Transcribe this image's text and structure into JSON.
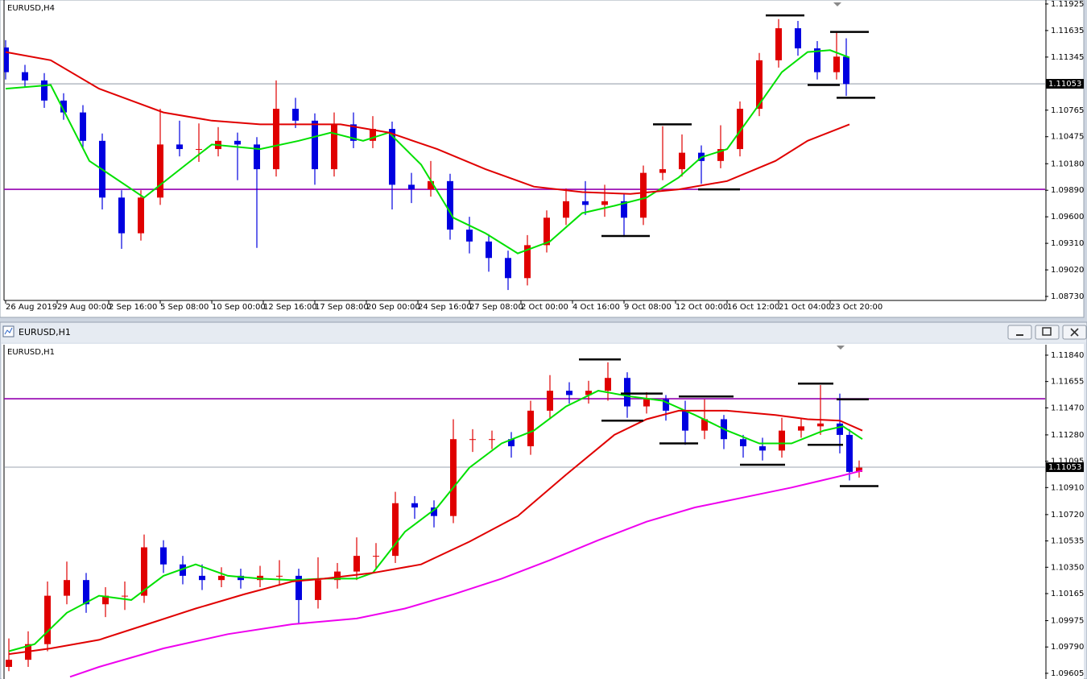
{
  "window": {
    "title": "EURUSD,H1"
  },
  "chart_data": [
    {
      "type": "candlestick",
      "title": "EURUSD,H4",
      "up_color": "#e00000",
      "down_color": "#0000e0",
      "xlim": [
        -0.5,
        322.75
      ],
      "ylim": [
        1.08695,
        1.11951
      ],
      "yticks": [
        1.11925,
        1.11635,
        1.11345,
        1.10765,
        1.10475,
        {
          "value": 1.1018,
          "label": "1.10180"
        },
        {
          "value": 1.0989,
          "label": "1.09890"
        },
        {
          "value": 1.096,
          "label": "1.09600"
        },
        {
          "value": 1.0931,
          "label": "1.09310"
        },
        {
          "value": 1.0902,
          "label": "1.09020"
        },
        {
          "value": 1.0873,
          "label": "1.08730"
        }
      ],
      "xticks": [
        {
          "value": 0,
          "label": "26 Aug 2019"
        },
        {
          "value": 16,
          "label": "29 Aug 00:00"
        },
        {
          "value": 32,
          "label": "2 Sep 16:00"
        },
        {
          "value": 48,
          "label": "5 Sep 08:00"
        },
        {
          "value": 64,
          "label": "10 Sep 00:00"
        },
        {
          "value": 80,
          "label": "12 Sep 16:00"
        },
        {
          "value": 96,
          "label": "17 Sep 08:00"
        },
        {
          "value": 112,
          "label": "20 Sep 00:00"
        },
        {
          "value": 128,
          "label": "24 Sep 16:00"
        },
        {
          "value": 144,
          "label": "27 Sep 08:00"
        },
        {
          "value": 160,
          "label": "2 Oct 00:00"
        },
        {
          "value": 176,
          "label": "4 Oct 16:00"
        },
        {
          "value": 192,
          "label": "9 Oct 08:00"
        },
        {
          "value": 208,
          "label": "12 Oct 00:00"
        },
        {
          "value": 224,
          "label": "16 Oct 12:00"
        },
        {
          "value": 240,
          "label": "21 Oct 04:00"
        },
        {
          "value": 256,
          "label": "23 Oct 20:00"
        }
      ],
      "x": [
        0,
        6,
        12,
        18,
        24,
        30,
        36,
        42,
        48,
        54,
        60,
        66,
        72,
        78,
        84,
        90,
        96,
        102,
        108,
        114,
        120,
        126,
        132,
        138,
        144,
        150,
        156,
        162,
        168,
        174,
        180,
        186,
        192,
        198,
        204,
        210,
        216,
        222,
        228,
        234,
        240,
        246,
        252,
        258,
        261
      ],
      "open": [
        1.1145,
        1.1118,
        1.1109,
        1.1087,
        1.1074,
        1.1043,
        1.0981,
        1.0942,
        1.0981,
        1.1039,
        1.1034,
        1.1034,
        1.1043,
        1.1039,
        1.1012,
        1.1078,
        1.1065,
        1.1012,
        1.1061,
        1.1043,
        1.1056,
        1.0995,
        1.099,
        1.0999,
        1.0946,
        1.0933,
        1.0915,
        1.0893,
        1.0929,
        1.0959,
        1.0977,
        1.0973,
        1.0977,
        1.0959,
        1.1008,
        1.1012,
        1.103,
        1.1021,
        1.1034,
        1.1078,
        1.1131,
        1.1166,
        1.1144,
        1.1118,
        1.1135
      ],
      "high": [
        1.1153,
        1.1126,
        1.1117,
        1.1095,
        1.1082,
        1.1051,
        1.0989,
        1.0989,
        1.1078,
        1.1065,
        1.1062,
        1.1058,
        1.1052,
        1.1047,
        1.1109,
        1.109,
        1.1073,
        1.1074,
        1.1074,
        1.107,
        1.1064,
        1.1008,
        1.1021,
        1.1007,
        1.096,
        1.0941,
        1.0923,
        1.094,
        1.0967,
        1.0991,
        1.0999,
        1.0995,
        1.0985,
        1.1016,
        1.1059,
        1.105,
        1.1038,
        1.106,
        1.1086,
        1.1139,
        1.1176,
        1.1174,
        1.1152,
        1.1163,
        1.1155
      ],
      "low": [
        1.111,
        1.1101,
        1.1079,
        1.1066,
        1.1035,
        1.0968,
        1.0925,
        1.0934,
        1.0973,
        1.1026,
        1.102,
        1.1026,
        1.1,
        1.0926,
        1.1004,
        1.1057,
        1.0995,
        1.1004,
        1.1035,
        1.1035,
        1.0968,
        1.0975,
        1.0982,
        1.0935,
        1.092,
        1.09,
        1.088,
        1.0885,
        1.0921,
        1.0951,
        1.0962,
        1.096,
        1.0938,
        1.0951,
        1.1,
        1.1004,
        1.0996,
        1.1013,
        1.1026,
        1.107,
        1.1123,
        1.1136,
        1.111,
        1.111,
        1.1092
      ],
      "close": [
        1.1118,
        1.1109,
        1.1087,
        1.1074,
        1.1043,
        1.0981,
        1.0942,
        1.0981,
        1.1039,
        1.1034,
        1.1034,
        1.1043,
        1.1039,
        1.1012,
        1.1078,
        1.1065,
        1.1012,
        1.1061,
        1.1043,
        1.1056,
        1.0995,
        1.099,
        1.0999,
        1.0946,
        1.0933,
        1.0915,
        1.0893,
        1.0929,
        1.0959,
        1.0977,
        1.0973,
        1.0977,
        1.0959,
        1.1008,
        1.1012,
        1.103,
        1.1021,
        1.1034,
        1.1078,
        1.1131,
        1.1166,
        1.1144,
        1.1118,
        1.1135,
        1.1105
      ],
      "moving_averages": [
        {
          "color": "#00e000",
          "x": [
            0,
            14,
            26,
            43,
            56,
            64,
            79,
            91,
            101,
            111,
            119,
            129,
            139,
            149,
            159,
            169,
            179,
            189,
            199,
            209,
            216,
            224,
            234,
            241,
            249,
            256,
            262
          ],
          "values": [
            1.11,
            1.1104,
            1.1021,
            1.0981,
            1.1017,
            1.1039,
            1.1034,
            1.1043,
            1.1052,
            1.1043,
            1.1052,
            1.1017,
            1.0959,
            1.0942,
            1.092,
            1.0933,
            1.0964,
            1.0972,
            1.0981,
            1.1003,
            1.1025,
            1.1034,
            1.1083,
            1.1118,
            1.114,
            1.1142,
            1.1134
          ]
        },
        {
          "color": "#e00000",
          "x": [
            0,
            14,
            29,
            49,
            64,
            79,
            91,
            104,
            119,
            134,
            149,
            164,
            179,
            194,
            209,
            224,
            239,
            249,
            262
          ],
          "values": [
            1.114,
            1.1131,
            1.11,
            1.1074,
            1.1065,
            1.1061,
            1.1061,
            1.1061,
            1.1052,
            1.1034,
            1.1012,
            1.0993,
            1.0987,
            1.0985,
            1.099,
            1.0999,
            1.1021,
            1.1043,
            1.1061
          ]
        }
      ],
      "hlines": [
        {
          "value": 1.099,
          "color": "#9400b0"
        }
      ],
      "current_price": 1.11053,
      "level_marks": [
        {
          "x": [
            236,
            248
          ],
          "value": 1.118
        },
        {
          "x": [
            256,
            268
          ],
          "value": 1.1162
        },
        {
          "x": [
            249,
            259
          ],
          "value": 1.1104
        },
        {
          "x": [
            258,
            270
          ],
          "value": 1.109
        },
        {
          "x": [
            201,
            213
          ],
          "value": 1.1061
        },
        {
          "x": [
            215,
            228
          ],
          "value": 1.099
        },
        {
          "x": [
            185,
            200
          ],
          "value": 1.0939
        }
      ]
    },
    {
      "type": "candlestick",
      "title": "EURUSD,H1",
      "up_color": "#e00000",
      "down_color": "#0000e0",
      "xlim": [
        -0.5,
        322.75
      ],
      "ylim": [
        1.09565,
        1.11902
      ],
      "yticks": [
        {
          "value": 1.1184,
          "label": "1.11840"
        },
        1.11655,
        {
          "value": 1.1147,
          "label": "1.11470"
        },
        {
          "value": 1.1128,
          "label": "1.11280"
        },
        1.11095,
        {
          "value": 1.1091,
          "label": "1.10910"
        },
        {
          "value": 1.1072,
          "label": "1.10720"
        },
        1.10535,
        {
          "value": 1.1035,
          "label": "1.10350"
        },
        1.10165,
        1.09975,
        {
          "value": 1.0979,
          "label": "1.09790"
        },
        1.09605
      ],
      "x": [
        1,
        7,
        13,
        19,
        25,
        31,
        37,
        43,
        49,
        55,
        61,
        67,
        73,
        79,
        85,
        91,
        97,
        103,
        109,
        115,
        121,
        127,
        133,
        139,
        145,
        151,
        157,
        163,
        169,
        175,
        181,
        187,
        193,
        199,
        205,
        211,
        217,
        223,
        229,
        235,
        241,
        247,
        253,
        259,
        262,
        265
      ],
      "open": [
        1.0965,
        1.097,
        1.0981,
        1.1015,
        1.1026,
        1.1009,
        1.1015,
        1.1015,
        1.1049,
        1.1037,
        1.1029,
        1.1026,
        1.1029,
        1.1026,
        1.1029,
        1.1029,
        1.1012,
        1.1026,
        1.1032,
        1.1043,
        1.1043,
        1.108,
        1.1077,
        1.1071,
        1.1125,
        1.1125,
        1.1125,
        1.112,
        1.1145,
        1.1159,
        1.1156,
        1.1159,
        1.1168,
        1.1148,
        1.1153,
        1.1145,
        1.1131,
        1.1139,
        1.1125,
        1.112,
        1.1117,
        1.1131,
        1.1134,
        1.1136,
        1.1128,
        1.1102
      ],
      "high": [
        1.0985,
        1.099,
        1.1025,
        1.1039,
        1.1031,
        1.1021,
        1.1025,
        1.1058,
        1.1054,
        1.1043,
        1.1037,
        1.1035,
        1.1034,
        1.1036,
        1.104,
        1.1034,
        1.1042,
        1.1038,
        1.1056,
        1.1052,
        1.1088,
        1.1085,
        1.1082,
        1.1139,
        1.1132,
        1.1131,
        1.113,
        1.1152,
        1.117,
        1.1165,
        1.1166,
        1.1179,
        1.1172,
        1.1158,
        1.1156,
        1.1152,
        1.1153,
        1.1142,
        1.1128,
        1.1126,
        1.114,
        1.114,
        1.1163,
        1.1157,
        1.1132,
        1.111
      ],
      "low": [
        1.0962,
        1.0965,
        1.0976,
        1.1009,
        1.1003,
        1.1,
        1.1005,
        1.101,
        1.1031,
        1.1023,
        1.1019,
        1.1021,
        1.102,
        1.1021,
        1.1022,
        1.0995,
        1.1006,
        1.102,
        1.1026,
        1.1034,
        1.1038,
        1.1069,
        1.1063,
        1.1066,
        1.1116,
        1.1118,
        1.1112,
        1.1114,
        1.1139,
        1.115,
        1.115,
        1.1152,
        1.114,
        1.1143,
        1.1138,
        1.1121,
        1.1125,
        1.1118,
        1.1112,
        1.111,
        1.1112,
        1.1126,
        1.1128,
        1.1115,
        1.1096,
        1.1098
      ],
      "close": [
        1.097,
        1.0981,
        1.1015,
        1.1026,
        1.1009,
        1.1015,
        1.1015,
        1.1049,
        1.1037,
        1.1029,
        1.1026,
        1.1029,
        1.1026,
        1.1029,
        1.1029,
        1.1012,
        1.1026,
        1.1032,
        1.1043,
        1.1043,
        1.108,
        1.1077,
        1.1071,
        1.1125,
        1.1125,
        1.1125,
        1.112,
        1.1145,
        1.1159,
        1.1156,
        1.1159,
        1.1168,
        1.1148,
        1.1153,
        1.1145,
        1.1131,
        1.1139,
        1.1125,
        1.112,
        1.1117,
        1.1131,
        1.1134,
        1.1136,
        1.1128,
        1.1102,
        1.1105
      ],
      "moving_averages": [
        {
          "color": "#00e000",
          "x": [
            1,
            9,
            19,
            29,
            39,
            49,
            59,
            69,
            79,
            89,
            99,
            109,
            114,
            124,
            134,
            144,
            154,
            164,
            174,
            184,
            194,
            204,
            214,
            224,
            234,
            244,
            254,
            260,
            266
          ],
          "values": [
            1.0976,
            1.0981,
            1.1003,
            1.1015,
            1.1012,
            1.1029,
            1.1037,
            1.1029,
            1.1027,
            1.1026,
            1.1027,
            1.1027,
            1.1031,
            1.106,
            1.1077,
            1.1105,
            1.1122,
            1.1131,
            1.1148,
            1.1159,
            1.1155,
            1.1152,
            1.1142,
            1.1131,
            1.1122,
            1.1122,
            1.1131,
            1.1134,
            1.1125
          ]
        },
        {
          "color": "#e00000",
          "x": [
            1,
            14,
            29,
            44,
            59,
            74,
            89,
            99,
            114,
            129,
            144,
            159,
            174,
            189,
            199,
            209,
            224,
            239,
            249,
            259,
            266
          ],
          "values": [
            1.0974,
            1.0978,
            1.0984,
            1.0995,
            1.1006,
            1.1016,
            1.1025,
            1.1027,
            1.1031,
            1.1037,
            1.1053,
            1.1071,
            1.11,
            1.1128,
            1.1139,
            1.1145,
            1.1145,
            1.1142,
            1.1139,
            1.1138,
            1.1131
          ]
        },
        {
          "color": "#ee00ee",
          "x": [
            20,
            29,
            49,
            69,
            89,
            109,
            124,
            139,
            154,
            169,
            184,
            199,
            214,
            229,
            244,
            259,
            266
          ],
          "values": [
            1.0958,
            1.0965,
            1.0978,
            1.0988,
            1.0995,
            1.0999,
            1.1006,
            1.1016,
            1.1027,
            1.104,
            1.1054,
            1.1067,
            1.1077,
            1.1084,
            1.1091,
            1.1099,
            1.1103
          ]
        }
      ],
      "hlines": [
        {
          "value": 1.11534,
          "color": "#9400b0"
        }
      ],
      "current_price": 1.11053,
      "level_marks": [
        {
          "x": [
            178,
            191
          ],
          "value": 1.1181
        },
        {
          "x": [
            185,
            198
          ],
          "value": 1.1138
        },
        {
          "x": [
            191,
            204
          ],
          "value": 1.1157
        },
        {
          "x": [
            203,
            215
          ],
          "value": 1.1122
        },
        {
          "x": [
            209,
            226
          ],
          "value": 1.1155
        },
        {
          "x": [
            228,
            242
          ],
          "value": 1.1107
        },
        {
          "x": [
            246,
            257
          ],
          "value": 1.1164
        },
        {
          "x": [
            249,
            260
          ],
          "value": 1.1121
        },
        {
          "x": [
            258,
            268
          ],
          "value": 1.1153
        },
        {
          "x": [
            259,
            271
          ],
          "value": 1.1092
        }
      ]
    }
  ]
}
